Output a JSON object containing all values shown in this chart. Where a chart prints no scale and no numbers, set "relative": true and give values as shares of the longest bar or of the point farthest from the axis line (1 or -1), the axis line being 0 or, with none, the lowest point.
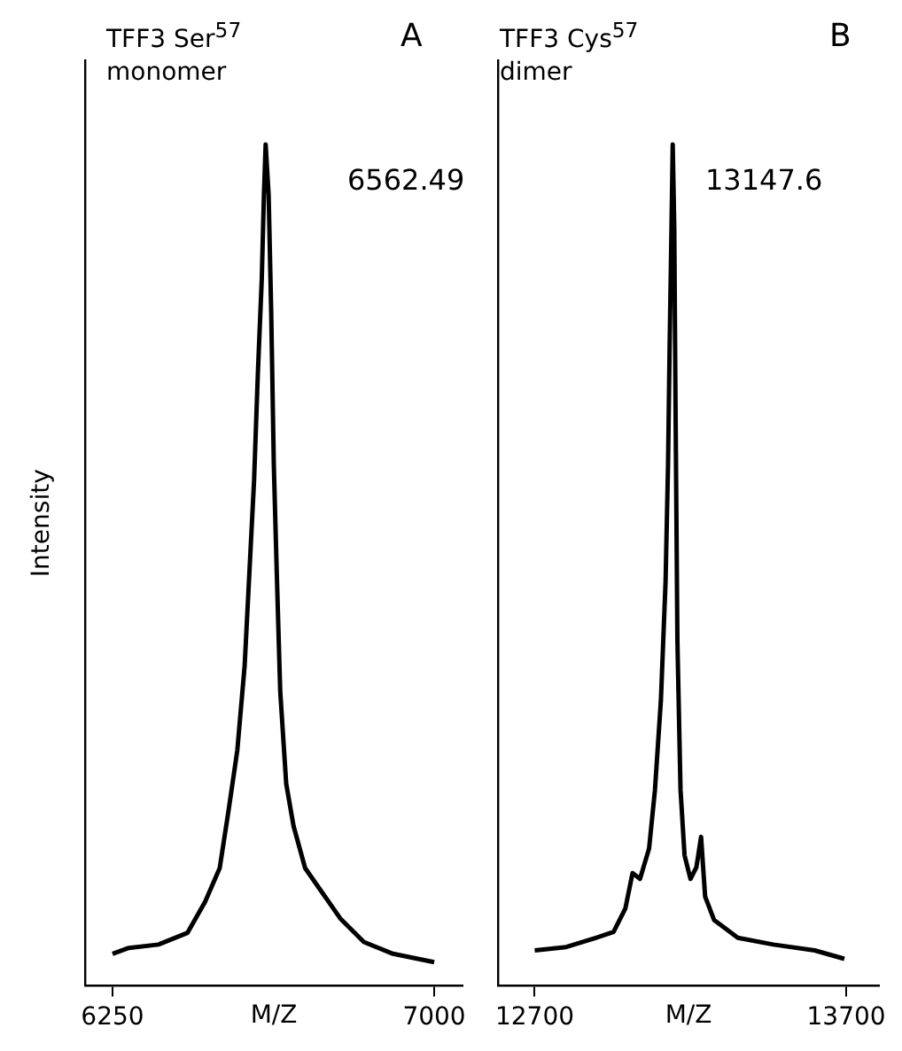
{
  "chart_data": [
    {
      "type": "line",
      "title": "TFF3 Ser$^{57}$\nmonomer",
      "xlabel": "M/Z",
      "ylabel": "Intensity",
      "annotations": [
        "A",
        "6562.49"
      ],
      "relative": true,
      "tick_labels": "x",
      "legend": false,
      "grid": false,
      "marker": "none",
      "xlim": [
        6186,
        7066
      ],
      "xticks": [
        6250,
        7000
      ],
      "x": [
        6250,
        6288,
        6357,
        6425,
        6466,
        6500,
        6521,
        6541,
        6558,
        6569,
        6580,
        6589,
        6598,
        6603,
        6607,
        6614,
        6620,
        6626,
        6633,
        6641,
        6655,
        6672,
        6699,
        6740,
        6781,
        6836,
        6904,
        7000
      ],
      "series": [
        {
          "color": "#000000",
          "values": [
            0.038,
            0.045,
            0.049,
            0.063,
            0.1,
            0.14,
            0.21,
            0.28,
            0.38,
            0.49,
            0.6,
            0.73,
            0.84,
            0.94,
            1.0,
            0.94,
            0.8,
            0.62,
            0.49,
            0.35,
            0.24,
            0.19,
            0.14,
            0.11,
            0.08,
            0.052,
            0.038,
            0.028
          ]
        }
      ]
    },
    {
      "type": "line",
      "title": "TFF3 Cys$^{57}$\ndimer",
      "xlabel": "M/Z",
      "annotations": [
        "B",
        "13147.6"
      ],
      "relative": true,
      "tick_labels": "x",
      "legend": false,
      "grid": false,
      "marker": "none",
      "xlim": [
        12582,
        13805
      ],
      "xticks": [
        12700,
        13700
      ],
      "x": [
        12700,
        12801,
        12896,
        12953,
        12991,
        13014,
        13038,
        13067,
        13086,
        13105,
        13120,
        13128,
        13133,
        13139,
        13143,
        13148,
        13152,
        13158,
        13168,
        13181,
        13200,
        13219,
        13234,
        13247,
        13276,
        13352,
        13466,
        13599,
        13694
      ],
      "series": [
        {
          "color": "#000000",
          "values": [
            0.042,
            0.046,
            0.057,
            0.064,
            0.092,
            0.134,
            0.127,
            0.163,
            0.233,
            0.339,
            0.48,
            0.62,
            0.76,
            0.9,
            1.0,
            0.9,
            0.69,
            0.41,
            0.233,
            0.155,
            0.127,
            0.141,
            0.177,
            0.106,
            0.078,
            0.057,
            0.049,
            0.042,
            0.032
          ]
        }
      ]
    }
  ]
}
